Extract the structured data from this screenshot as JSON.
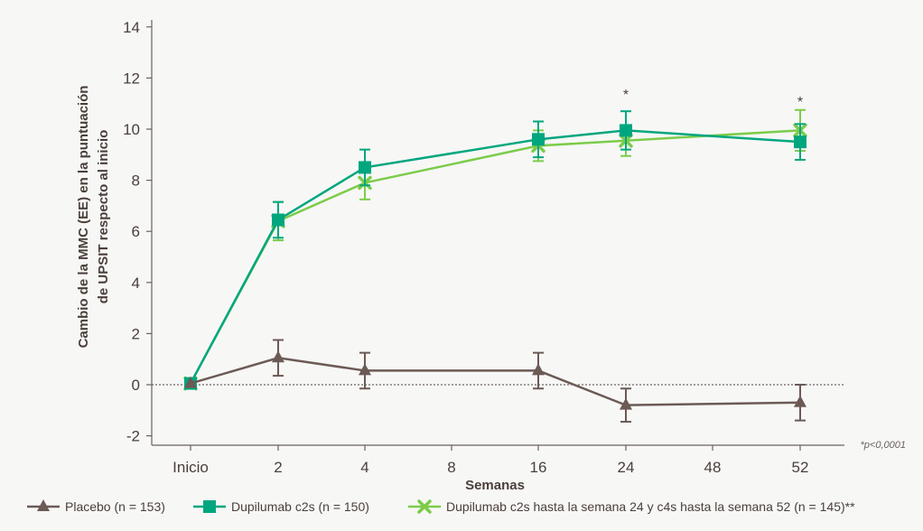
{
  "chart_data": {
    "type": "line",
    "categories": [
      "Inicio",
      "2",
      "4",
      "8",
      "16",
      "24",
      "48",
      "52"
    ],
    "xlabel": "Semanas",
    "ylabel_line1": "Cambio de la MMC (EE) en la puntuación",
    "ylabel_line2": "de UPSIT respecto al inicio",
    "ylim": [
      -2,
      14
    ],
    "yticks": [
      "14",
      "12",
      "10",
      "8",
      "6",
      "4",
      "2",
      "0",
      "-2"
    ],
    "reference_line": 0,
    "footnote": "*p<0,0001",
    "significance_marker": "*",
    "significance_at": [
      "24",
      "52"
    ],
    "series": [
      {
        "name": "Placebo (n = 153)",
        "color": "#6b5a55",
        "marker": "triangle",
        "x": [
          "Inicio",
          "2",
          "4",
          "16",
          "24",
          "52"
        ],
        "y": [
          0.05,
          1.05,
          0.55,
          0.55,
          -0.8,
          -0.7
        ],
        "err": [
          0,
          0.7,
          0.7,
          0.7,
          0.65,
          0.7
        ]
      },
      {
        "name": "Dupilumab c2s (n = 150)",
        "color": "#00a67e",
        "marker": "square",
        "x": [
          "Inicio",
          "2",
          "4",
          "16",
          "24",
          "52"
        ],
        "y": [
          0.05,
          6.45,
          8.5,
          9.6,
          9.95,
          9.5
        ],
        "err": [
          0,
          0.7,
          0.7,
          0.7,
          0.75,
          0.7
        ]
      },
      {
        "name": "Dupilumab c2s hasta la semana 24 y c4s hasta la semana 52 (n = 145)**",
        "color": "#7ccc4a",
        "marker": "x",
        "x": [
          "Inicio",
          "2",
          "4",
          "16",
          "24",
          "52"
        ],
        "y": [
          0.05,
          6.4,
          7.9,
          9.35,
          9.55,
          9.95
        ],
        "err": [
          0,
          0.75,
          0.65,
          0.6,
          0.6,
          0.8
        ]
      }
    ]
  }
}
